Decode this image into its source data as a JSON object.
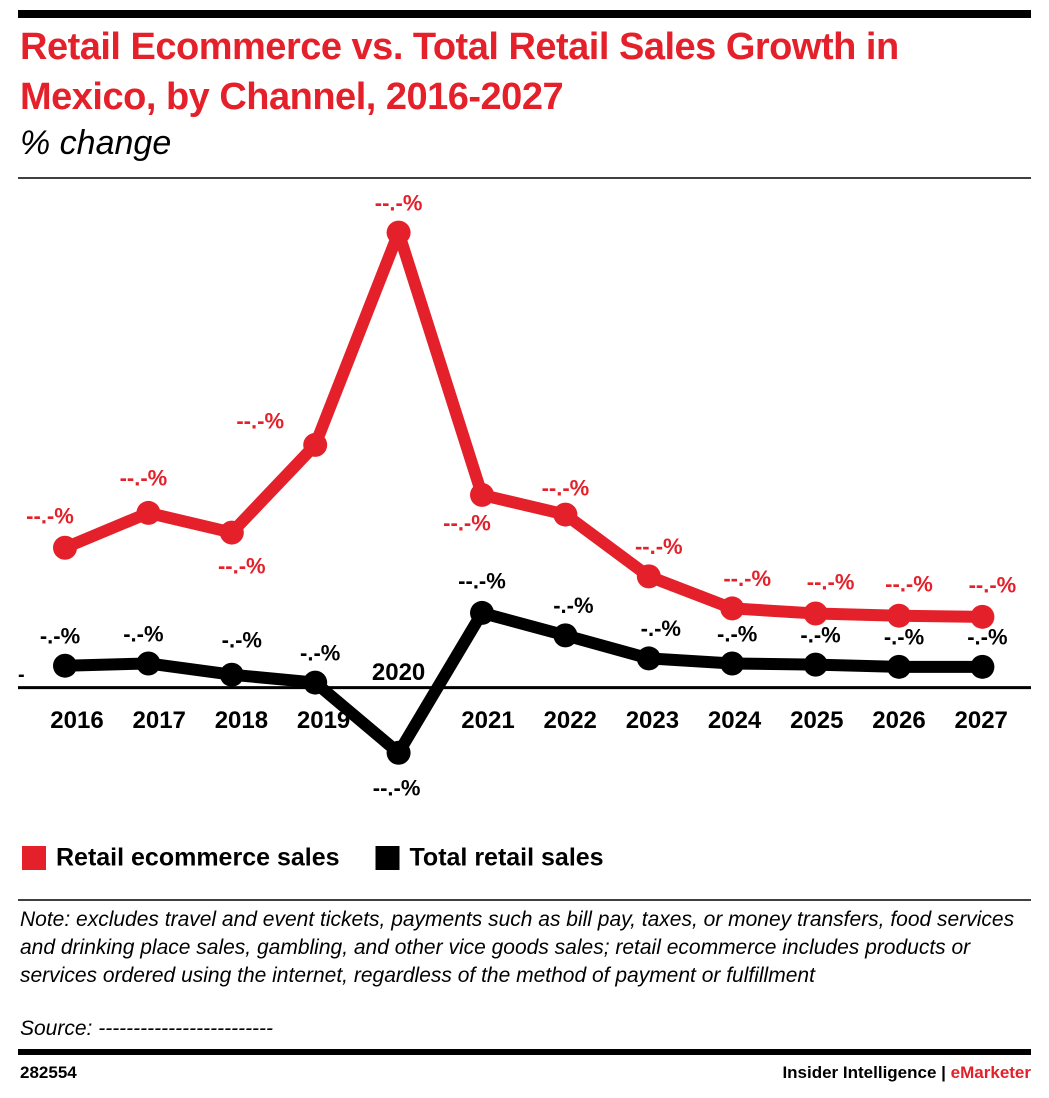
{
  "chart_data": {
    "type": "line",
    "title": "Retail Ecommerce vs. Total Retail Sales Growth in Mexico, by Channel, 2016-2027",
    "subtitle": "% change",
    "categories": [
      "2016",
      "2017",
      "2018",
      "2019",
      "2020",
      "2021",
      "2022",
      "2023",
      "2024",
      "2025",
      "2026",
      "2027"
    ],
    "series": [
      {
        "name": "Retail ecommerce sales",
        "color": "#e4202a",
        "values": [
          24.9,
          31.1,
          27.6,
          43.2,
          81.0,
          34.3,
          30.8,
          19.8,
          14.1,
          13.2,
          12.8,
          12.6
        ],
        "value_labels": [
          "--.-%",
          "--.-%",
          "--.-%",
          "--.-%",
          "--.-%",
          "--.-%",
          "--.-%",
          "--.-%",
          "--.-%",
          "--.-%",
          "--.-%",
          "--.-%"
        ]
      },
      {
        "name": "Total retail sales",
        "color": "#000000",
        "values": [
          3.9,
          4.3,
          2.3,
          0.9,
          -11.6,
          13.3,
          9.3,
          5.2,
          4.3,
          4.1,
          3.7,
          3.7
        ],
        "value_labels": [
          "-.-%",
          "-.-%",
          "-.-%",
          "-.-%",
          "--.-%",
          "--.-%",
          "-.-%",
          "-.-%",
          "-.-%",
          "-.-%",
          "-.-%",
          "-.-%"
        ]
      }
    ],
    "ylim": [
      -20,
      90
    ],
    "yticks": [
      {
        "value": 0,
        "label": "-"
      }
    ],
    "grid": false,
    "legend": "bottom-left",
    "note": "Note: excludes travel and event tickets, payments such as bill pay, taxes, or money transfers, food services and drinking place sales, gambling, and other vice goods sales; retail ecommerce includes products or services ordered using the internet, regardless of the method of payment or fulfillment",
    "source": "Source: -------------------------",
    "footer_id": "282554",
    "footer_brand": "Insider Intelligence",
    "footer_separator": "|",
    "footer_product": "eMarketer"
  }
}
